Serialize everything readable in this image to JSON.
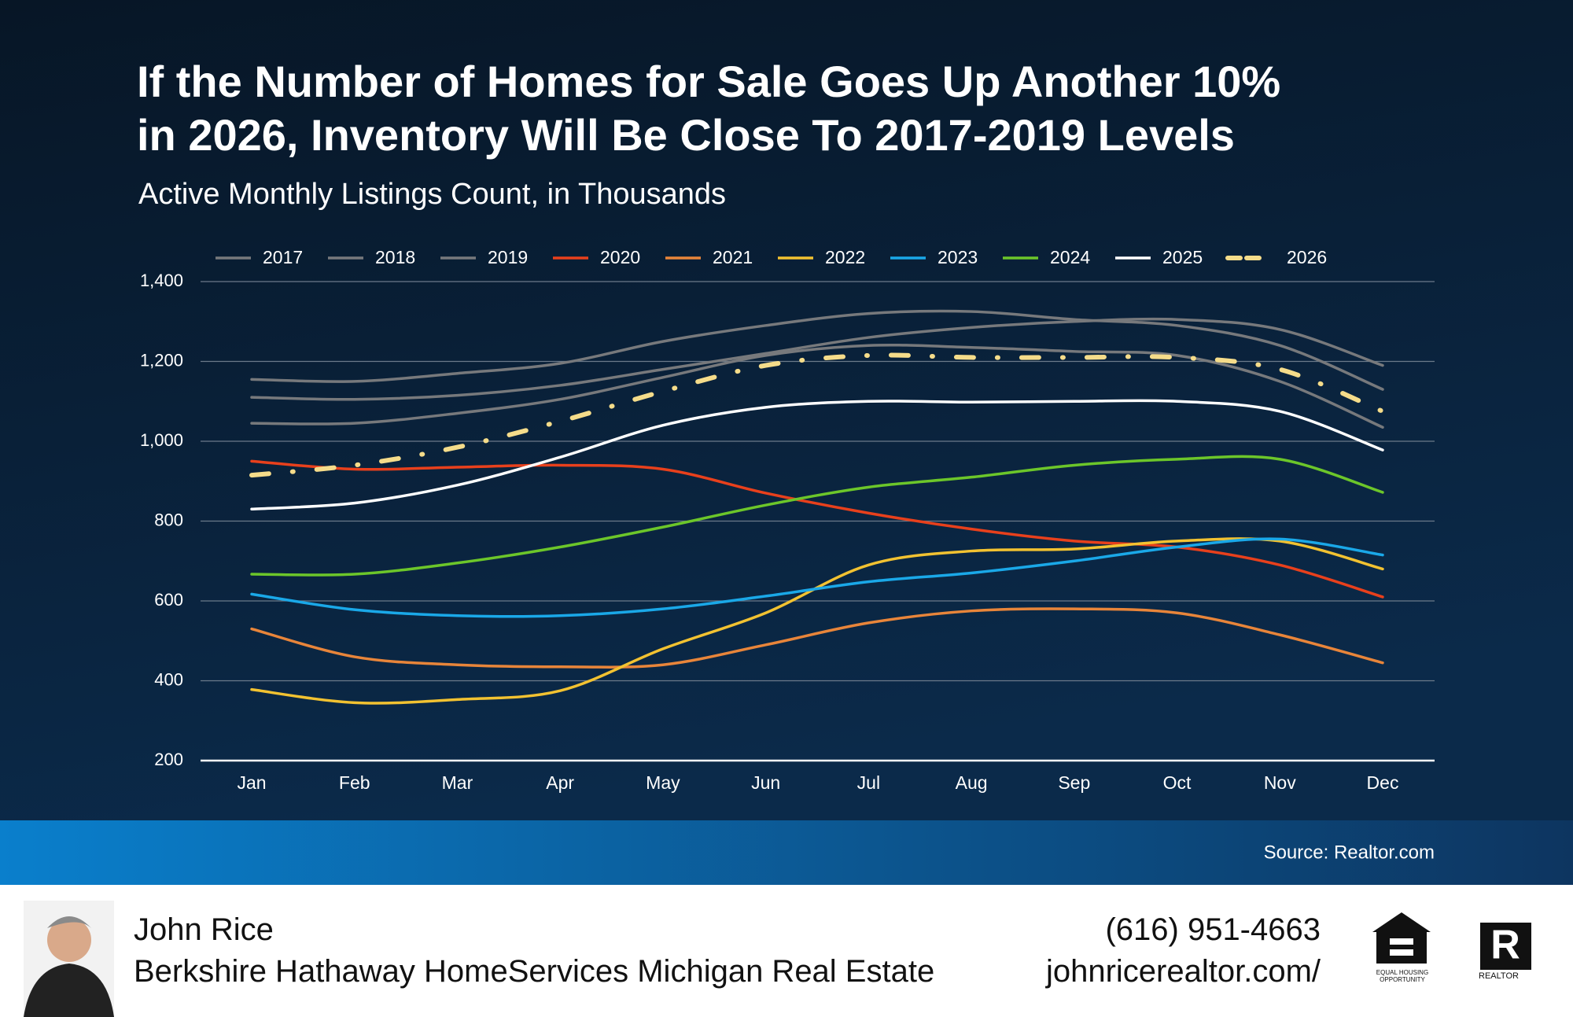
{
  "chart_data": {
    "type": "line",
    "title": [
      "If the Number of Homes for Sale Goes Up Another 10%",
      "in 2026, Inventory Will Be Close To 2017-2019 Levels"
    ],
    "subtitle": "Active Monthly Listings Count, in Thousands",
    "source": "Source: Realtor.com",
    "categories": [
      "Jan",
      "Feb",
      "Mar",
      "Apr",
      "May",
      "Jun",
      "Jul",
      "Aug",
      "Sep",
      "Oct",
      "Nov",
      "Dec"
    ],
    "ylim": [
      200,
      1400
    ],
    "yticks": [
      200,
      400,
      600,
      800,
      {
        "value": 1000,
        "label": "1,000"
      },
      {
        "value": 1200,
        "label": "1,200"
      },
      {
        "value": 1400,
        "label": "1,400"
      }
    ],
    "grid": true,
    "series": [
      {
        "name": "2017",
        "color": "#77797c",
        "values": [
          1045,
          1045,
          1070,
          1105,
          1160,
          1215,
          1240,
          1235,
          1225,
          1215,
          1150,
          1035
        ]
      },
      {
        "name": "2018",
        "color": "#77797c",
        "values": [
          1110,
          1105,
          1115,
          1140,
          1180,
          1220,
          1260,
          1285,
          1300,
          1305,
          1280,
          1190
        ]
      },
      {
        "name": "2019",
        "color": "#77797c",
        "values": [
          1155,
          1150,
          1170,
          1195,
          1250,
          1290,
          1320,
          1325,
          1305,
          1290,
          1240,
          1130
        ]
      },
      {
        "name": "2020",
        "color": "#e8401c",
        "values": [
          950,
          930,
          935,
          940,
          930,
          870,
          820,
          780,
          750,
          735,
          690,
          610
        ]
      },
      {
        "name": "2021",
        "color": "#e8853a",
        "values": [
          530,
          460,
          440,
          435,
          440,
          490,
          545,
          575,
          580,
          570,
          515,
          445
        ]
      },
      {
        "name": "2022",
        "color": "#f2c231",
        "values": [
          378,
          345,
          353,
          375,
          480,
          570,
          690,
          725,
          730,
          750,
          750,
          680
        ]
      },
      {
        "name": "2023",
        "color": "#1aa8e8",
        "values": [
          617,
          578,
          563,
          563,
          580,
          612,
          648,
          670,
          700,
          735,
          755,
          715
        ]
      },
      {
        "name": "2024",
        "color": "#6cc62a",
        "values": [
          667,
          667,
          695,
          735,
          785,
          840,
          885,
          910,
          940,
          955,
          955,
          872
        ]
      },
      {
        "name": "2025",
        "color": "#ffffff",
        "values": [
          830,
          845,
          890,
          960,
          1040,
          1085,
          1100,
          1098,
          1100,
          1100,
          1075,
          978
        ]
      },
      {
        "name": "2026",
        "color": "#f5dc8a",
        "dashed": true,
        "values": [
          915,
          940,
          985,
          1050,
          1125,
          1190,
          1215,
          1210,
          1210,
          1210,
          1180,
          1075
        ]
      }
    ]
  },
  "footer": {
    "name": "John Rice",
    "company": "Berkshire Hathaway HomeServices Michigan Real Estate",
    "phone": "(616) 951-4663",
    "website": "johnricerealtor.com/",
    "logos": [
      "EQUAL HOUSING OPPORTUNITY",
      "REALTOR"
    ]
  }
}
